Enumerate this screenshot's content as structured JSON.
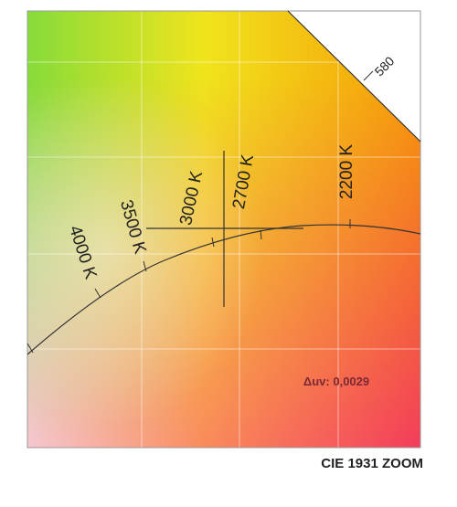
{
  "diagram": {
    "title": "CIE 1931 ZOOM",
    "wavelength_label": "580",
    "cct_labels": [
      "4000 K",
      "3500 K",
      "3000 K",
      "2700 K",
      "2200 K"
    ],
    "delta_uv": "Δuv: 0,0029"
  }
}
